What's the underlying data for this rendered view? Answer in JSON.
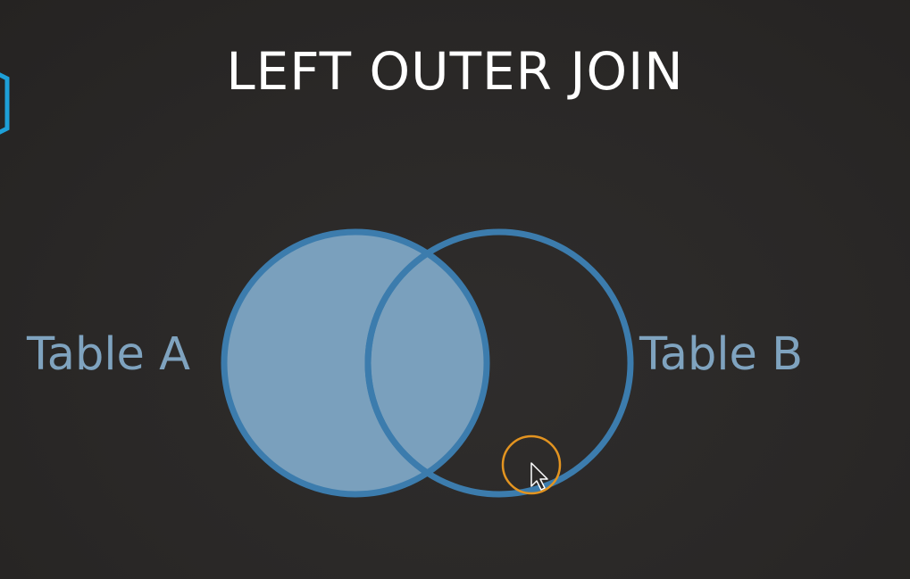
{
  "slide": {
    "title": "LEFT OUTER JOIN"
  },
  "diagram": {
    "type": "venn",
    "sets": [
      {
        "label": "Table A",
        "filled": true
      },
      {
        "label": "Table B",
        "filled": false
      }
    ],
    "highlighted_region": "all of Table A (including overlap with Table B)"
  },
  "colors": {
    "background": "#2b2928",
    "circle_stroke": "#3c7cad",
    "circle_fill": "#7aa0bd",
    "label_text": "#7fa3bf",
    "title_text": "#ffffff",
    "cursor_highlight": "#e39420",
    "logo_stroke": "#1ea0d8"
  },
  "icons": {
    "cursor": "arrow-cursor-icon",
    "logo": "hexagon-logo-icon"
  }
}
